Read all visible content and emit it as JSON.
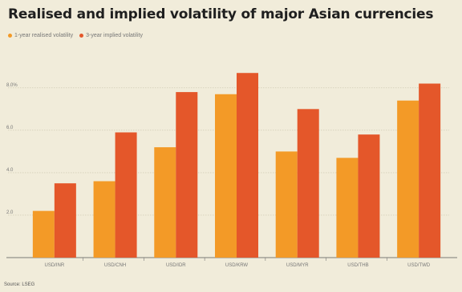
{
  "title": "Realised and implied volatility of major Asian currencies",
  "legend": [
    {
      "label": "1-year realised volatility",
      "color": "#f39a27"
    },
    {
      "label": "3-year implied volatility",
      "color": "#e4572a"
    }
  ],
  "source": "Source: LSEG",
  "chart_data": {
    "type": "bar",
    "categories": [
      "USD/INR",
      "USD/CNH",
      "USD/IDR",
      "USD/KRW",
      "USD/MYR",
      "USD/THB",
      "USD/TWD"
    ],
    "series": [
      {
        "name": "1-year realised volatility",
        "values": [
          2.2,
          3.6,
          5.2,
          7.7,
          5.0,
          4.7,
          7.4
        ],
        "color": "#f39a27"
      },
      {
        "name": "3-year implied volatility",
        "values": [
          3.5,
          5.9,
          7.8,
          8.7,
          7.0,
          5.8,
          8.2
        ],
        "color": "#e4572a"
      }
    ],
    "yticks": [
      {
        "value": 2,
        "label": "2.0"
      },
      {
        "value": 4,
        "label": "4.0"
      },
      {
        "value": 6,
        "label": "6.0"
      },
      {
        "value": 8,
        "label": "8.0%"
      }
    ],
    "ylim": [
      0,
      9.5
    ],
    "grid": true,
    "legend_position": "top-left",
    "xlabel": "",
    "ylabel": ""
  }
}
